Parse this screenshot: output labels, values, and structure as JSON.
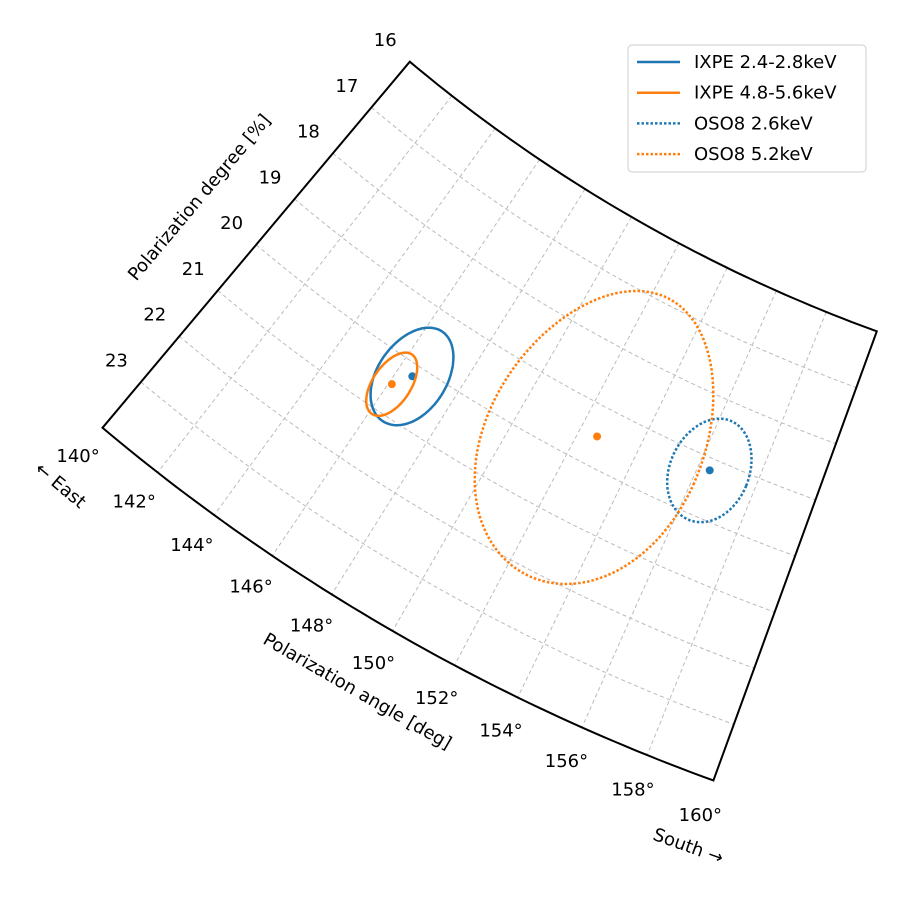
{
  "chart_data": {
    "type": "polar-ellipse",
    "xlabel": "Polarization angle [deg]",
    "ylabel": "Polarization degree [%]",
    "annotations": [
      "← East",
      "South →"
    ],
    "xlim": [
      140,
      160
    ],
    "xticks": [
      {
        "value": 140,
        "label": "140°"
      },
      {
        "value": 142,
        "label": "142°"
      },
      {
        "value": 144,
        "label": "144°"
      },
      {
        "value": 146,
        "label": "146°"
      },
      {
        "value": 148,
        "label": "148°"
      },
      {
        "value": 150,
        "label": "150°"
      },
      {
        "value": 152,
        "label": "152°"
      },
      {
        "value": 154,
        "label": "154°"
      },
      {
        "value": 156,
        "label": "156°"
      },
      {
        "value": 158,
        "label": "158°"
      },
      {
        "value": 160,
        "label": "160°"
      }
    ],
    "ylim": [
      16,
      24
    ],
    "yticks": [
      16,
      17,
      18,
      19,
      20,
      21,
      22,
      23
    ],
    "grid": true,
    "legend": "upper right",
    "series": [
      {
        "name": "IXPE 2.4-2.8keV",
        "color": "#1f77b4",
        "linestyle": "solid",
        "angle": 146.5,
        "degree": 20.2,
        "angle_err": 1.1,
        "degree_err": 0.9
      },
      {
        "name": "IXPE 4.8-5.6keV",
        "color": "#ff7f0e",
        "linestyle": "solid",
        "angle": 146.1,
        "degree": 20.5,
        "angle_err": 0.6,
        "degree_err": 0.6
      },
      {
        "name": "OSO8 2.6keV",
        "color": "#1f77b4",
        "linestyle": "dotted",
        "angle": 156.4,
        "degree": 19.2,
        "angle_err": 1.3,
        "degree_err": 0.9
      },
      {
        "name": "OSO8 5.2keV",
        "color": "#ff7f0e",
        "linestyle": "dotted",
        "angle": 152.6,
        "degree": 19.5,
        "angle_err": 3.5,
        "degree_err": 2.6
      }
    ]
  }
}
